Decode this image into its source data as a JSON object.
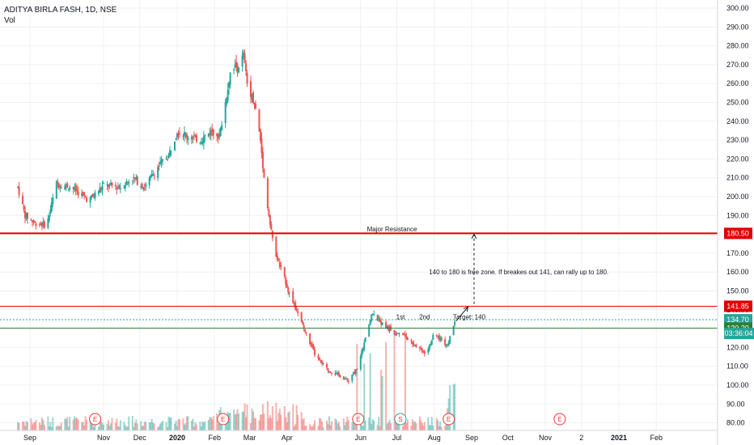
{
  "header": {
    "symbol": "ADITYA BIRLA FASH, 1D, NSE",
    "volume_label": "Vol"
  },
  "colors": {
    "up": "#26a69a",
    "down": "#ef5350",
    "resistance": "#e00000",
    "support": "#2e7d32",
    "grid": "#eef0f3",
    "text": "#131722"
  },
  "chart_data": {
    "type": "candlestick",
    "title": "ADITYA BIRLA FASH, 1D, NSE",
    "ylim": [
      75,
      305
    ],
    "y_ticks": [
      "300.00",
      "290.00",
      "280.00",
      "270.00",
      "260.00",
      "250.00",
      "240.00",
      "230.00",
      "220.00",
      "210.00",
      "200.00",
      "190.00",
      "180.00",
      "170.00",
      "160.00",
      "150.00",
      "140.00",
      "130.00",
      "120.00",
      "110.00",
      "100.00",
      "90.00",
      "80.00"
    ],
    "x_ticks": [
      {
        "label": "Sep",
        "date": "2019-09-01",
        "bold": false
      },
      {
        "label": "Nov",
        "date": "2019-11-01",
        "bold": false
      },
      {
        "label": "Dec",
        "date": "2019-12-01",
        "bold": false
      },
      {
        "label": "2020",
        "date": "2020-01-01",
        "bold": true
      },
      {
        "label": "Feb",
        "date": "2020-02-01",
        "bold": false
      },
      {
        "label": "Mar",
        "date": "2020-03-01",
        "bold": false
      },
      {
        "label": "Apr",
        "date": "2020-04-01",
        "bold": false
      },
      {
        "label": "Jun",
        "date": "2020-06-01",
        "bold": false
      },
      {
        "label": "Jul",
        "date": "2020-07-01",
        "bold": false
      },
      {
        "label": "Aug",
        "date": "2020-08-01",
        "bold": false
      },
      {
        "label": "Sep",
        "date": "2020-09-01",
        "bold": false
      },
      {
        "label": "Oct",
        "date": "2020-10-01",
        "bold": false
      },
      {
        "label": "Nov",
        "date": "2020-11-01",
        "bold": false
      },
      {
        "label": "2",
        "date": "2020-12-01",
        "bold": false
      },
      {
        "label": "2021",
        "date": "2021-01-01",
        "bold": true
      },
      {
        "label": "Feb",
        "date": "2021-02-01",
        "bold": false
      }
    ],
    "price_path": [
      [
        "2019-08-22",
        205
      ],
      [
        "2019-08-28",
        190
      ],
      [
        "2019-09-05",
        186
      ],
      [
        "2019-09-15",
        185
      ],
      [
        "2019-09-23",
        207
      ],
      [
        "2019-10-05",
        205
      ],
      [
        "2019-10-20",
        198
      ],
      [
        "2019-11-01",
        206
      ],
      [
        "2019-11-15",
        205
      ],
      [
        "2019-11-25",
        210
      ],
      [
        "2019-12-05",
        205
      ],
      [
        "2019-12-15",
        215
      ],
      [
        "2019-12-25",
        222
      ],
      [
        "2020-01-01",
        235
      ],
      [
        "2020-01-10",
        232
      ],
      [
        "2020-01-20",
        230
      ],
      [
        "2020-01-30",
        235
      ],
      [
        "2020-02-05",
        232
      ],
      [
        "2020-02-10",
        250
      ],
      [
        "2020-02-15",
        270
      ],
      [
        "2020-02-20",
        268
      ],
      [
        "2020-02-25",
        275
      ],
      [
        "2020-02-28",
        260
      ],
      [
        "2020-03-05",
        250
      ],
      [
        "2020-03-10",
        230
      ],
      [
        "2020-03-13",
        210
      ],
      [
        "2020-03-18",
        185
      ],
      [
        "2020-03-22",
        170
      ],
      [
        "2020-03-28",
        160
      ],
      [
        "2020-04-05",
        145
      ],
      [
        "2020-04-15",
        130
      ],
      [
        "2020-04-25",
        115
      ],
      [
        "2020-05-05",
        108
      ],
      [
        "2020-05-15",
        105
      ],
      [
        "2020-05-22",
        102
      ],
      [
        "2020-05-30",
        110
      ],
      [
        "2020-06-05",
        125
      ],
      [
        "2020-06-10",
        138
      ],
      [
        "2020-06-20",
        132
      ],
      [
        "2020-06-30",
        128
      ],
      [
        "2020-07-05",
        128
      ],
      [
        "2020-07-15",
        122
      ],
      [
        "2020-07-25",
        117
      ],
      [
        "2020-08-01",
        127
      ],
      [
        "2020-08-05",
        125
      ],
      [
        "2020-08-12",
        121
      ],
      [
        "2020-08-18",
        134
      ]
    ],
    "horizontal_lines": [
      {
        "value": 180.5,
        "label": "180.50",
        "color": "#e00000",
        "width": 2
      },
      {
        "value": 141.85,
        "label": "141.85",
        "color": "#e00000",
        "width": 1
      },
      {
        "value": 134.7,
        "label": "134.70",
        "color": "#26a69a",
        "width": 1
      },
      {
        "value": 130.2,
        "label": "130.20",
        "color": "#2e7d32",
        "width": 1
      }
    ],
    "countdown_tag": {
      "label": "03:36:04",
      "value": 127.4
    },
    "annotations": [
      {
        "text": "Major Resistance",
        "date": "2020-06-27",
        "value": 182.9
      },
      {
        "text": "140 to 180 is free zone. If breakes out 141, can rally up to 180.",
        "date": "2020-10-10",
        "value": 160
      },
      {
        "text": "Target: 140",
        "date": "2020-08-30",
        "value": 136.3
      },
      {
        "text": "1st",
        "date": "2020-07-04",
        "value": 136.3
      },
      {
        "text": "2nd",
        "date": "2020-07-24",
        "value": 136.3
      }
    ],
    "arrows": [
      {
        "from": [
          "2020-08-19",
          134
        ],
        "to": [
          "2020-08-29",
          141.5
        ],
        "style": "solid"
      },
      {
        "from": [
          "2020-09-03",
          143
        ],
        "to": [
          "2020-09-03",
          180
        ],
        "style": "dashed"
      }
    ],
    "events": [
      {
        "label": "E",
        "date": "2019-10-25"
      },
      {
        "label": "E",
        "date": "2020-02-08"
      },
      {
        "label": "E",
        "date": "2020-05-30"
      },
      {
        "label": "S",
        "date": "2020-07-04"
      },
      {
        "label": "E",
        "date": "2020-08-13"
      },
      {
        "label": "E",
        "date": "2020-11-13"
      }
    ]
  }
}
